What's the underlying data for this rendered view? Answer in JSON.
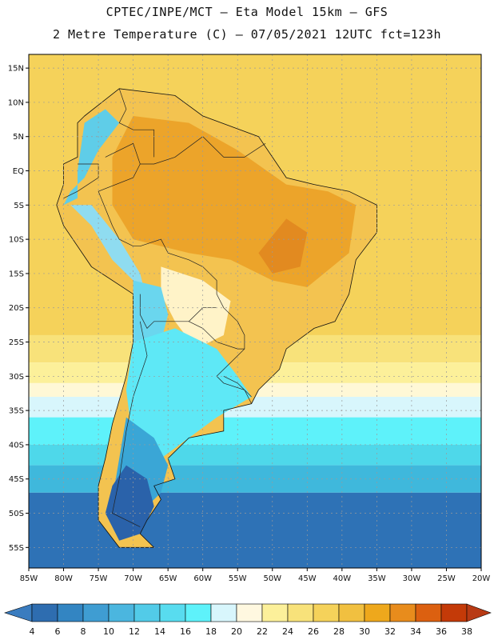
{
  "title": {
    "line1": "CPTEC/INPE/MCT –  Eta Model 15km – GFS",
    "line2": "2 Metre Temperature (C) – 07/05/2021 12UTC fct=123h"
  },
  "map": {
    "lon_range": [
      -85,
      -20
    ],
    "lat_range": [
      -58,
      17
    ],
    "lat_ticks": [
      {
        "value": 15,
        "label": "15N"
      },
      {
        "value": 10,
        "label": "10N"
      },
      {
        "value": 5,
        "label": "5N"
      },
      {
        "value": 0,
        "label": "EQ"
      },
      {
        "value": -5,
        "label": "5S"
      },
      {
        "value": -10,
        "label": "10S"
      },
      {
        "value": -15,
        "label": "15S"
      },
      {
        "value": -20,
        "label": "20S"
      },
      {
        "value": -25,
        "label": "25S"
      },
      {
        "value": -30,
        "label": "30S"
      },
      {
        "value": -35,
        "label": "35S"
      },
      {
        "value": -40,
        "label": "40S"
      },
      {
        "value": -45,
        "label": "45S"
      },
      {
        "value": -50,
        "label": "50S"
      },
      {
        "value": -55,
        "label": "55S"
      }
    ],
    "lon_ticks": [
      {
        "value": -85,
        "label": "85W"
      },
      {
        "value": -80,
        "label": "80W"
      },
      {
        "value": -75,
        "label": "75W"
      },
      {
        "value": -70,
        "label": "70W"
      },
      {
        "value": -65,
        "label": "65W"
      },
      {
        "value": -60,
        "label": "60W"
      },
      {
        "value": -55,
        "label": "55W"
      },
      {
        "value": -50,
        "label": "50W"
      },
      {
        "value": -45,
        "label": "45W"
      },
      {
        "value": -40,
        "label": "40W"
      },
      {
        "value": -35,
        "label": "35W"
      },
      {
        "value": -30,
        "label": "30W"
      },
      {
        "value": -25,
        "label": "25W"
      },
      {
        "value": -20,
        "label": "20W"
      }
    ],
    "ocean_bands": [
      {
        "lat_top": 17,
        "lat_bottom": -24,
        "color": "#f5d25a"
      },
      {
        "lat_top": -24,
        "lat_bottom": -28,
        "color": "#f8e27a"
      },
      {
        "lat_top": -28,
        "lat_bottom": -31,
        "color": "#fcf09a"
      },
      {
        "lat_top": -31,
        "lat_bottom": -33,
        "color": "#fff8d6"
      },
      {
        "lat_top": -33,
        "lat_bottom": -36,
        "color": "#d8f6fc"
      },
      {
        "lat_top": -36,
        "lat_bottom": -40,
        "color": "#5ef2fa"
      },
      {
        "lat_top": -40,
        "lat_bottom": -43,
        "color": "#4ed8ea"
      },
      {
        "lat_top": -43,
        "lat_bottom": -47,
        "color": "#3fb8dc"
      },
      {
        "lat_top": -47,
        "lat_bottom": -58,
        "color": "#2e72b6"
      }
    ],
    "land_regions": [
      {
        "name": "south-america-base",
        "color": "#f3c350",
        "coords": [
          [
            -77,
            8
          ],
          [
            -72,
            12
          ],
          [
            -64,
            11
          ],
          [
            -60,
            8
          ],
          [
            -52,
            5
          ],
          [
            -50,
            2
          ],
          [
            -48,
            -1
          ],
          [
            -44,
            -2
          ],
          [
            -39,
            -3
          ],
          [
            -35,
            -5
          ],
          [
            -35,
            -9
          ],
          [
            -38,
            -13
          ],
          [
            -39,
            -18
          ],
          [
            -41,
            -22
          ],
          [
            -44,
            -23
          ],
          [
            -48,
            -26
          ],
          [
            -49,
            -29
          ],
          [
            -52,
            -32
          ],
          [
            -53,
            -34
          ],
          [
            -57,
            -35
          ],
          [
            -57,
            -38
          ],
          [
            -62,
            -39
          ],
          [
            -65,
            -42
          ],
          [
            -64,
            -45
          ],
          [
            -67,
            -46
          ],
          [
            -66,
            -48
          ],
          [
            -68,
            -51
          ],
          [
            -69,
            -53
          ],
          [
            -67,
            -55
          ],
          [
            -72,
            -55
          ],
          [
            -75,
            -51
          ],
          [
            -75,
            -46
          ],
          [
            -74,
            -42
          ],
          [
            -73,
            -37
          ],
          [
            -71,
            -30
          ],
          [
            -70,
            -25
          ],
          [
            -70,
            -18
          ],
          [
            -76,
            -14
          ],
          [
            -80,
            -8
          ],
          [
            -81,
            -5
          ],
          [
            -80,
            -2
          ],
          [
            -80,
            1
          ],
          [
            -78,
            2
          ],
          [
            -78,
            7
          ]
        ]
      },
      {
        "name": "hot-interior",
        "color": "#eca42a",
        "coords": [
          [
            -70,
            8
          ],
          [
            -62,
            7
          ],
          [
            -55,
            3
          ],
          [
            -48,
            -2
          ],
          [
            -42,
            -3
          ],
          [
            -38,
            -5
          ],
          [
            -39,
            -12
          ],
          [
            -45,
            -17
          ],
          [
            -50,
            -16
          ],
          [
            -56,
            -13
          ],
          [
            -62,
            -12
          ],
          [
            -70,
            -10
          ],
          [
            -73,
            -5
          ],
          [
            -73,
            2
          ]
        ]
      },
      {
        "name": "hot-spot-central",
        "color": "#e28a20",
        "coords": [
          [
            -48,
            -7
          ],
          [
            -45,
            -9
          ],
          [
            -46,
            -14
          ],
          [
            -50,
            -15
          ],
          [
            -52,
            -12
          ]
        ]
      },
      {
        "name": "andes-north-cold",
        "color": "#5fcde8",
        "coords": [
          [
            -77,
            7
          ],
          [
            -74,
            9
          ],
          [
            -72,
            7
          ],
          [
            -75,
            3
          ],
          [
            -77,
            -1
          ],
          [
            -79,
            -3
          ],
          [
            -80,
            -5
          ],
          [
            -78,
            -4
          ],
          [
            -78,
            0
          ]
        ]
      },
      {
        "name": "andes-peru",
        "color": "#8fdcf0",
        "coords": [
          [
            -79,
            -5
          ],
          [
            -76,
            -8
          ],
          [
            -73,
            -13
          ],
          [
            -70,
            -16
          ],
          [
            -68,
            -19
          ],
          [
            -69,
            -15
          ],
          [
            -72,
            -10
          ],
          [
            -76,
            -5
          ]
        ]
      },
      {
        "name": "chaco-pale",
        "color": "#fff3c8",
        "coords": [
          [
            -66,
            -14
          ],
          [
            -60,
            -16
          ],
          [
            -56,
            -19
          ],
          [
            -57,
            -24
          ],
          [
            -61,
            -26
          ],
          [
            -64,
            -22
          ],
          [
            -66,
            -18
          ]
        ]
      },
      {
        "name": "altiplano-cold",
        "color": "#6ad6ee",
        "coords": [
          [
            -70,
            -16
          ],
          [
            -66,
            -17
          ],
          [
            -65,
            -21
          ],
          [
            -66,
            -25
          ],
          [
            -68,
            -27
          ],
          [
            -70,
            -25
          ],
          [
            -70,
            -20
          ]
        ]
      },
      {
        "name": "south-cone-light",
        "color": "#5ee8f6",
        "coords": [
          [
            -70,
            -25
          ],
          [
            -64,
            -23
          ],
          [
            -58,
            -26
          ],
          [
            -55,
            -30
          ],
          [
            -53,
            -33
          ],
          [
            -58,
            -36
          ],
          [
            -62,
            -39
          ],
          [
            -66,
            -42
          ],
          [
            -70,
            -40
          ],
          [
            -71,
            -32
          ]
        ]
      },
      {
        "name": "patagonia-mid",
        "color": "#3aa6d6",
        "coords": [
          [
            -71,
            -36
          ],
          [
            -67,
            -39
          ],
          [
            -65,
            -43
          ],
          [
            -66,
            -47
          ],
          [
            -69,
            -50
          ],
          [
            -73,
            -48
          ],
          [
            -72,
            -42
          ]
        ]
      },
      {
        "name": "patagonia-cold",
        "color": "#2a62aa",
        "coords": [
          [
            -71,
            -43
          ],
          [
            -68,
            -45
          ],
          [
            -67,
            -49
          ],
          [
            -69,
            -53
          ],
          [
            -72,
            -54
          ],
          [
            -74,
            -50
          ],
          [
            -73,
            -46
          ]
        ]
      }
    ],
    "borders": [
      [
        [
          -73,
          -8
        ],
        [
          -72,
          -10
        ],
        [
          -70,
          -11
        ],
        [
          -69,
          -11
        ],
        [
          -66,
          -10
        ],
        [
          -65,
          -12
        ],
        [
          -62,
          -13
        ],
        [
          -60,
          -14
        ],
        [
          -58,
          -16
        ],
        [
          -58,
          -18
        ],
        [
          -57,
          -20
        ],
        [
          -55,
          -22
        ],
        [
          -54,
          -24
        ],
        [
          -54,
          -26
        ],
        [
          -56,
          -28
        ],
        [
          -58,
          -30
        ],
        [
          -57,
          -31
        ],
        [
          -54,
          -32
        ],
        [
          -53,
          -34
        ]
      ],
      [
        [
          -74,
          2
        ],
        [
          -70,
          4
        ],
        [
          -69,
          1
        ],
        [
          -67,
          1
        ],
        [
          -64,
          2
        ],
        [
          -60,
          5
        ],
        [
          -57,
          2
        ],
        [
          -54,
          2
        ],
        [
          -51,
          4
        ]
      ],
      [
        [
          -69,
          -18
        ],
        [
          -69,
          -21
        ],
        [
          -68,
          -23
        ],
        [
          -67,
          -22
        ],
        [
          -66,
          -22
        ],
        [
          -62,
          -22
        ],
        [
          -60,
          -20
        ],
        [
          -58,
          -20
        ]
      ],
      [
        [
          -69,
          -22
        ],
        [
          -68,
          -27
        ],
        [
          -70,
          -33
        ],
        [
          -71,
          -38
        ],
        [
          -72,
          -45
        ],
        [
          -73,
          -50
        ],
        [
          -69,
          -52
        ]
      ],
      [
        [
          -80,
          -4
        ],
        [
          -78,
          -3
        ],
        [
          -75,
          -1
        ],
        [
          -75,
          1
        ],
        [
          -78,
          1
        ]
      ],
      [
        [
          -73,
          -8
        ],
        [
          -75,
          -3
        ],
        [
          -70,
          -1
        ],
        [
          -69,
          1
        ]
      ],
      [
        [
          -72,
          12
        ],
        [
          -71,
          9
        ],
        [
          -72,
          7
        ],
        [
          -70,
          6
        ],
        [
          -67,
          6
        ],
        [
          -67,
          2
        ]
      ],
      [
        [
          -62,
          -22
        ],
        [
          -60,
          -23
        ],
        [
          -58,
          -25
        ],
        [
          -55,
          -26
        ],
        [
          -54,
          -26
        ]
      ],
      [
        [
          -57,
          -30
        ],
        [
          -55,
          -31
        ],
        [
          -53,
          -33
        ]
      ]
    ]
  },
  "colorbar": {
    "labels": [
      "4",
      "6",
      "8",
      "10",
      "12",
      "14",
      "16",
      "18",
      "20",
      "22",
      "24",
      "26",
      "28",
      "30",
      "32",
      "34",
      "36",
      "38"
    ],
    "colors": [
      "#3a7cbf",
      "#2e6db0",
      "#3385c2",
      "#3f9dd2",
      "#4bb6df",
      "#52cbe8",
      "#58dcef",
      "#5ef2fa",
      "#d8f6fc",
      "#fff8e0",
      "#fcf09a",
      "#f8e27a",
      "#f5d25a",
      "#f1c040",
      "#eea81c",
      "#e88c1c",
      "#dc6010",
      "#c43a08",
      "#b83a14"
    ]
  }
}
